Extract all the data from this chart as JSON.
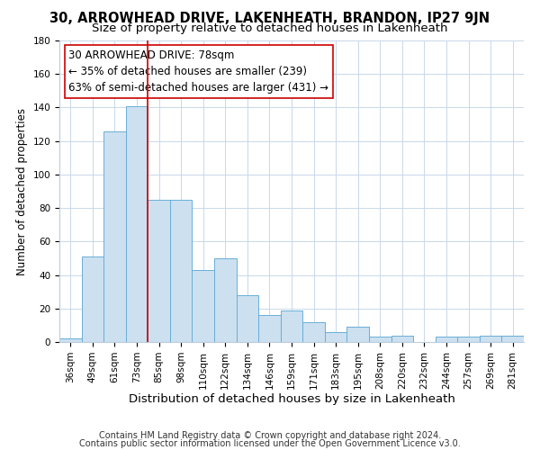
{
  "title": "30, ARROWHEAD DRIVE, LAKENHEATH, BRANDON, IP27 9JN",
  "subtitle": "Size of property relative to detached houses in Lakenheath",
  "xlabel": "Distribution of detached houses by size in Lakenheath",
  "ylabel": "Number of detached properties",
  "bar_labels": [
    "36sqm",
    "49sqm",
    "61sqm",
    "73sqm",
    "85sqm",
    "98sqm",
    "110sqm",
    "122sqm",
    "134sqm",
    "146sqm",
    "159sqm",
    "171sqm",
    "183sqm",
    "195sqm",
    "208sqm",
    "220sqm",
    "232sqm",
    "244sqm",
    "257sqm",
    "269sqm",
    "281sqm"
  ],
  "bar_values": [
    2,
    51,
    126,
    141,
    85,
    85,
    43,
    50,
    28,
    16,
    19,
    12,
    6,
    9,
    3,
    4,
    0,
    3,
    3,
    4,
    4
  ],
  "bar_color": "#cce0f0",
  "bar_edge_color": "#6aaed6",
  "annotation_line1": "30 ARROWHEAD DRIVE: 78sqm",
  "annotation_line2": "← 35% of detached houses are smaller (239)",
  "annotation_line3": "63% of semi-detached houses are larger (431) →",
  "red_line_color": "#cc0000",
  "red_line_x": 3.5,
  "ylim": [
    0,
    180
  ],
  "yticks": [
    0,
    20,
    40,
    60,
    80,
    100,
    120,
    140,
    160,
    180
  ],
  "footer_lines": [
    "Contains HM Land Registry data © Crown copyright and database right 2024.",
    "Contains public sector information licensed under the Open Government Licence v3.0."
  ],
  "title_fontsize": 10.5,
  "subtitle_fontsize": 9.5,
  "xlabel_fontsize": 9.5,
  "ylabel_fontsize": 8.5,
  "tick_fontsize": 7.5,
  "annotation_fontsize": 8.5,
  "footer_fontsize": 7,
  "bg_color": "#ffffff",
  "grid_color": "#c8d8ea"
}
